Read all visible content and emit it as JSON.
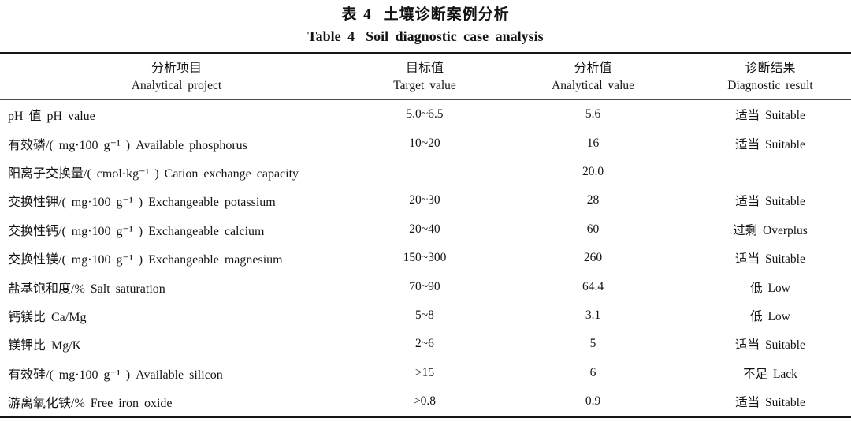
{
  "title": {
    "zh_label": "表 4",
    "zh_text": "土壤诊断案例分析",
    "en_label": "Table 4",
    "en_text": "Soil diagnostic case analysis"
  },
  "table": {
    "columns": [
      {
        "zh": "分析项目",
        "en": "Analytical project"
      },
      {
        "zh": "目标值",
        "en": "Target value"
      },
      {
        "zh": "分析值",
        "en": "Analytical value"
      },
      {
        "zh": "诊断结果",
        "en": "Diagnostic result"
      }
    ],
    "rows": [
      {
        "project": "pH 值 pH value",
        "target": "5.0~6.5",
        "value": "5.6",
        "result": "适当 Suitable"
      },
      {
        "project": "有效磷/( mg·100 g⁻¹ ) Available phosphorus",
        "target": "10~20",
        "value": "16",
        "result": "适当 Suitable"
      },
      {
        "project": "阳离子交换量/( cmol·kg⁻¹ ) Cation exchange capacity",
        "target": "",
        "value": "20.0",
        "result": ""
      },
      {
        "project": "交换性钾/( mg·100 g⁻¹ ) Exchangeable potassium",
        "target": "20~30",
        "value": "28",
        "result": "适当 Suitable"
      },
      {
        "project": "交换性钙/( mg·100 g⁻¹ ) Exchangeable calcium",
        "target": "20~40",
        "value": "60",
        "result": "过剩 Overplus"
      },
      {
        "project": "交换性镁/( mg·100 g⁻¹ ) Exchangeable magnesium",
        "target": "150~300",
        "value": "260",
        "result": "适当 Suitable"
      },
      {
        "project": "盐基饱和度/% Salt saturation",
        "target": "70~90",
        "value": "64.4",
        "result": "低 Low"
      },
      {
        "project": "钙镁比 Ca/Mg",
        "target": "5~8",
        "value": "3.1",
        "result": "低 Low"
      },
      {
        "project": "镁钾比 Mg/K",
        "target": "2~6",
        "value": "5",
        "result": "适当 Suitable"
      },
      {
        "project": "有效硅/( mg·100 g⁻¹ ) Available silicon",
        "target": ">15",
        "value": "6",
        "result": "不足 Lack"
      },
      {
        "project": "游离氧化铁/% Free iron oxide",
        "target": ">0.8",
        "value": "0.9",
        "result": "适当 Suitable"
      }
    ]
  }
}
